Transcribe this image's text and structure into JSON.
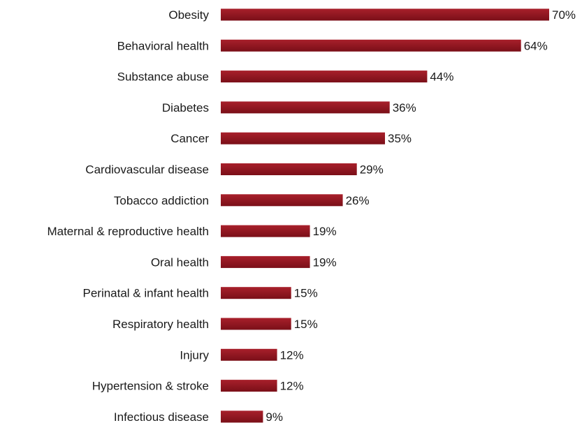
{
  "chart_data": {
    "type": "bar",
    "orientation": "horizontal",
    "title": "",
    "xlabel": "",
    "ylabel": "",
    "categories": [
      "Obesity",
      "Behavioral health",
      "Substance abuse",
      "Diabetes",
      "Cancer",
      "Cardiovascular disease",
      "Tobacco addiction",
      "Maternal & reproductive health",
      "Oral health",
      "Perinatal & infant health",
      "Respiratory health",
      "Injury",
      "Hypertension & stroke",
      "Infectious disease"
    ],
    "values": [
      70,
      64,
      44,
      36,
      35,
      29,
      26,
      19,
      19,
      15,
      15,
      12,
      12,
      9
    ],
    "value_labels": [
      "70%",
      "64%",
      "44%",
      "36%",
      "35%",
      "29%",
      "26%",
      "19%",
      "19%",
      "15%",
      "15%",
      "12%",
      "12%",
      "9%"
    ],
    "xlim": [
      0,
      70
    ],
    "grid": false,
    "legend": "none",
    "colors": {
      "bar_dark": "#7a0f18",
      "bar_light": "#a8202b"
    }
  }
}
